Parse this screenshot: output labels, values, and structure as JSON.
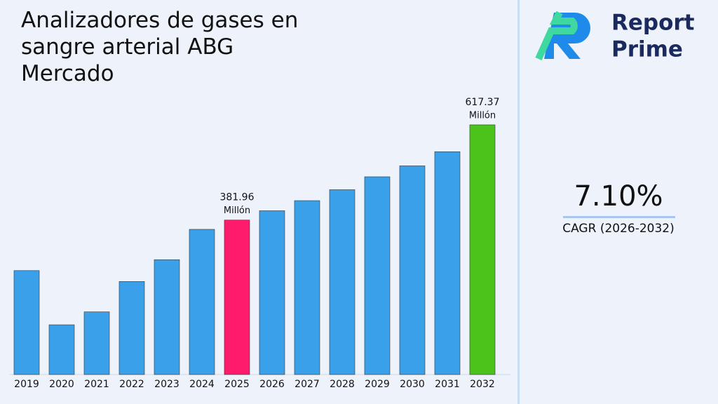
{
  "chart_data": {
    "type": "bar",
    "title": "Analizadores de gases en sangre arterial ABG Mercado",
    "categories": [
      "2019",
      "2020",
      "2021",
      "2022",
      "2023",
      "2024",
      "2025",
      "2026",
      "2027",
      "2028",
      "2029",
      "2030",
      "2031",
      "2032"
    ],
    "values": [
      257,
      123,
      155,
      230,
      284,
      359,
      381.96,
      405,
      430,
      457,
      489,
      516,
      551,
      617.37
    ],
    "colors": [
      "#3ba0ea",
      "#3ba0ea",
      "#3ba0ea",
      "#3ba0ea",
      "#3ba0ea",
      "#3ba0ea",
      "#ff1b6b",
      "#3ba0ea",
      "#3ba0ea",
      "#3ba0ea",
      "#3ba0ea",
      "#3ba0ea",
      "#3ba0ea",
      "#4cc31b"
    ],
    "labeled": [
      6,
      13
    ],
    "label_unit": "Millón"
  },
  "sidebar": {
    "brand_line1": "Report",
    "brand_line2": "Prime",
    "cagr_value": "7.10%",
    "cagr_label": "CAGR (2026-2032)"
  }
}
